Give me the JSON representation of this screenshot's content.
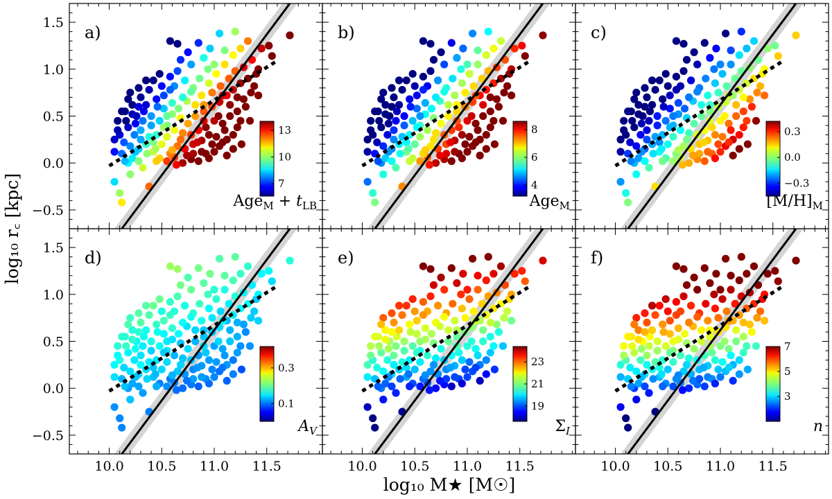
{
  "figure": {
    "xlabel": "log₁₀ M★ [M☉]",
    "ylabel": "log₁₀ r꜀ [kpc]"
  },
  "chart_data": {
    "type": "scatter",
    "xlim": [
      9.62,
      12.03
    ],
    "ylim": [
      -0.7,
      1.7
    ],
    "xticks": [
      10.0,
      10.5,
      11.0,
      11.5
    ],
    "yticks": [
      -0.5,
      0.0,
      0.5,
      1.0,
      1.5
    ],
    "xtick_labels": [
      "10.0",
      "10.5",
      "11.0",
      "11.5"
    ],
    "ytick_labels": [
      "−0.5",
      "0.0",
      "0.5",
      "1.0",
      "1.5"
    ],
    "grid": false,
    "colormap": "jet",
    "solid_line": {
      "x": [
        10.12,
        11.72
      ],
      "y": [
        -0.7,
        1.7
      ]
    },
    "solid_band_halfwidth_x": 0.07,
    "dotted_line": {
      "x": [
        10.0,
        11.6
      ],
      "y": [
        -0.03,
        1.09
      ]
    },
    "panels": [
      {
        "id": "a",
        "label": "a)",
        "color_quantity": "Age_M + t_LB",
        "colorbar_ticks": [
          "13",
          "10",
          "7"
        ],
        "vmin": 5.6,
        "vmax": 14.0
      },
      {
        "id": "b",
        "label": "b)",
        "color_quantity": "Age_M",
        "colorbar_ticks": [
          "8",
          "6",
          "4"
        ],
        "vmin": 3.2,
        "vmax": 8.6
      },
      {
        "id": "c",
        "label": "c)",
        "color_quantity": "[M/H]_M",
        "colorbar_ticks": [
          "0.3",
          "0.0",
          "−0.3"
        ],
        "vmin": -0.45,
        "vmax": 0.42
      },
      {
        "id": "d",
        "label": "d)",
        "color_quantity": "A_V",
        "colorbar_ticks": [
          "0.3",
          "0.1"
        ],
        "vmin": 0.0,
        "vmax": 0.42
      },
      {
        "id": "e",
        "label": "e)",
        "color_quantity": "Σ_I",
        "colorbar_ticks": [
          "23",
          "21",
          "19"
        ],
        "vmin": 17.6,
        "vmax": 24.4
      },
      {
        "id": "f",
        "label": "f)",
        "color_quantity": "n",
        "colorbar_ticks": [
          "7",
          "5",
          "3"
        ],
        "vmin": 1.0,
        "vmax": 7.0
      }
    ],
    "points": [
      [
        10.05,
        -0.2
      ],
      [
        10.12,
        -0.42
      ],
      [
        10.1,
        -0.32
      ],
      [
        10.18,
        0.0
      ],
      [
        10.22,
        0.05
      ],
      [
        10.28,
        0.02
      ],
      [
        10.2,
        -0.12
      ],
      [
        10.05,
        0.12
      ],
      [
        10.12,
        0.1
      ],
      [
        10.2,
        0.18
      ],
      [
        10.28,
        0.15
      ],
      [
        10.35,
        0.2
      ],
      [
        10.42,
        0.12
      ],
      [
        10.48,
        0.05
      ],
      [
        10.55,
        0.02
      ],
      [
        10.62,
        0.06
      ],
      [
        10.7,
        0.0
      ],
      [
        10.78,
        0.04
      ],
      [
        10.85,
        0.02
      ],
      [
        10.92,
        0.1
      ],
      [
        11.0,
        0.12
      ],
      [
        11.05,
        0.18
      ],
      [
        11.12,
        0.25
      ],
      [
        11.18,
        0.3
      ],
      [
        11.22,
        0.38
      ],
      [
        11.25,
        0.45
      ],
      [
        11.18,
        0.15
      ],
      [
        11.08,
        0.22
      ],
      [
        10.95,
        0.3
      ],
      [
        10.88,
        0.24
      ],
      [
        10.8,
        0.2
      ],
      [
        10.72,
        0.15
      ],
      [
        10.65,
        0.18
      ],
      [
        10.58,
        0.1
      ],
      [
        10.5,
        0.2
      ],
      [
        10.45,
        0.3
      ],
      [
        10.38,
        0.28
      ],
      [
        10.3,
        0.35
      ],
      [
        10.25,
        0.42
      ],
      [
        10.18,
        0.38
      ],
      [
        10.1,
        0.3
      ],
      [
        10.05,
        0.25
      ],
      [
        10.08,
        0.45
      ],
      [
        10.15,
        0.55
      ],
      [
        10.22,
        0.62
      ],
      [
        10.3,
        0.7
      ],
      [
        10.38,
        0.78
      ],
      [
        10.45,
        0.68
      ],
      [
        10.52,
        0.58
      ],
      [
        10.6,
        0.52
      ],
      [
        10.68,
        0.48
      ],
      [
        10.75,
        0.42
      ],
      [
        10.82,
        0.5
      ],
      [
        10.9,
        0.55
      ],
      [
        10.98,
        0.6
      ],
      [
        11.05,
        0.65
      ],
      [
        11.12,
        0.72
      ],
      [
        11.18,
        0.78
      ],
      [
        11.25,
        0.85
      ],
      [
        11.32,
        0.9
      ],
      [
        11.38,
        0.82
      ],
      [
        11.42,
        0.72
      ],
      [
        11.3,
        0.6
      ],
      [
        11.22,
        0.55
      ],
      [
        11.15,
        0.5
      ],
      [
        11.08,
        0.42
      ],
      [
        11.0,
        0.45
      ],
      [
        10.92,
        0.38
      ],
      [
        10.85,
        0.35
      ],
      [
        10.78,
        0.3
      ],
      [
        10.7,
        0.32
      ],
      [
        10.62,
        0.35
      ],
      [
        10.55,
        0.4
      ],
      [
        10.48,
        0.45
      ],
      [
        10.4,
        0.5
      ],
      [
        10.33,
        0.55
      ],
      [
        10.26,
        0.5
      ],
      [
        10.2,
        0.75
      ],
      [
        10.28,
        0.8
      ],
      [
        10.35,
        0.62
      ],
      [
        10.42,
        0.88
      ],
      [
        10.5,
        0.82
      ],
      [
        10.58,
        0.92
      ],
      [
        10.65,
        0.98
      ],
      [
        10.72,
        0.88
      ],
      [
        10.8,
        0.8
      ],
      [
        10.88,
        0.72
      ],
      [
        10.95,
        0.85
      ],
      [
        11.02,
        0.95
      ],
      [
        11.1,
        1.05
      ],
      [
        11.18,
        1.15
      ],
      [
        11.25,
        1.22
      ],
      [
        11.32,
        1.3
      ],
      [
        11.45,
        1.22
      ],
      [
        11.52,
        1.25
      ],
      [
        11.55,
        1.14
      ],
      [
        11.72,
        1.36
      ],
      [
        11.2,
        1.4
      ],
      [
        11.05,
        1.38
      ],
      [
        10.85,
        1.28
      ],
      [
        10.65,
        1.27
      ],
      [
        10.58,
        1.3
      ],
      [
        10.75,
        1.18
      ],
      [
        10.9,
        1.12
      ],
      [
        11.1,
        1.2
      ],
      [
        11.28,
        1.02
      ],
      [
        11.4,
        0.95
      ],
      [
        11.35,
        0.75
      ],
      [
        10.95,
        0.05
      ],
      [
        11.02,
        0.28
      ],
      [
        10.88,
        0.12
      ],
      [
        10.68,
        0.25
      ],
      [
        10.55,
        0.28
      ],
      [
        10.42,
        0.22
      ],
      [
        10.36,
        0.1
      ],
      [
        10.14,
        0.22
      ],
      [
        10.12,
        0.55
      ],
      [
        10.18,
        0.68
      ],
      [
        10.24,
        0.3
      ],
      [
        10.32,
        0.45
      ],
      [
        10.46,
        0.6
      ],
      [
        10.52,
        0.72
      ],
      [
        10.6,
        0.64
      ],
      [
        10.66,
        0.58
      ],
      [
        10.74,
        0.66
      ],
      [
        10.82,
        0.62
      ],
      [
        10.98,
        0.75
      ],
      [
        11.06,
        0.82
      ],
      [
        11.14,
        0.9
      ],
      [
        11.2,
        0.98
      ],
      [
        11.28,
        0.68
      ],
      [
        11.34,
        0.45
      ],
      [
        11.26,
        0.2
      ],
      [
        11.12,
        0.08
      ],
      [
        10.98,
        0.2
      ],
      [
        10.8,
        0.1
      ],
      [
        10.6,
        0.14
      ],
      [
        10.45,
        0.02
      ],
      [
        10.32,
        -0.05
      ],
      [
        10.38,
        -0.25
      ],
      [
        10.15,
        0.02
      ],
      [
        10.25,
        0.12
      ],
      [
        10.4,
        0.4
      ],
      [
        10.55,
        0.5
      ],
      [
        10.7,
        0.7
      ],
      [
        10.78,
        0.76
      ],
      [
        10.86,
        0.9
      ],
      [
        10.94,
        1.0
      ],
      [
        11.0,
        1.05
      ],
      [
        11.15,
        0.62
      ],
      [
        11.1,
        0.35
      ],
      [
        10.9,
        0.45
      ],
      [
        10.62,
        0.82
      ],
      [
        10.48,
        0.95
      ],
      [
        10.35,
        0.88
      ],
      [
        10.28,
        0.6
      ],
      [
        10.44,
        0.15
      ],
      [
        10.64,
        -0.02
      ],
      [
        10.74,
        0.08
      ],
      [
        10.84,
        0.22
      ],
      [
        11.04,
        0.5
      ],
      [
        11.22,
        0.7
      ],
      [
        11.36,
        1.1
      ],
      [
        11.42,
        1.0
      ],
      [
        10.96,
        1.22
      ],
      [
        10.78,
        1.05
      ],
      [
        10.68,
        1.1
      ],
      [
        10.52,
        0.38
      ],
      [
        10.16,
        0.45
      ],
      [
        10.08,
        0.35
      ],
      [
        10.22,
        0.52
      ],
      [
        10.3,
        0.25
      ],
      [
        10.58,
        0.78
      ],
      [
        10.9,
        0.62
      ],
      [
        11.08,
        0.72
      ]
    ]
  }
}
